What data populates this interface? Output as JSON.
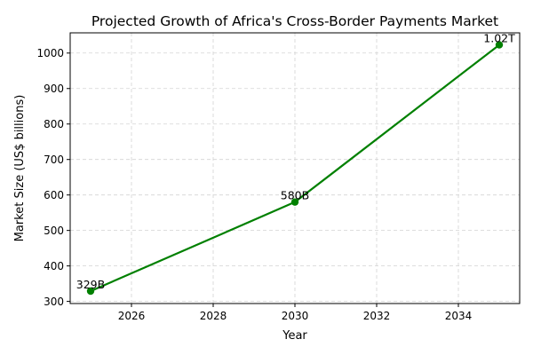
{
  "chart_data": {
    "type": "line",
    "title": "Projected Growth of Africa's Cross-Border Payments Market",
    "xlabel": "Year",
    "ylabel": "Market Size (US$ billions)",
    "x": [
      2025,
      2030,
      2035
    ],
    "series": [
      {
        "values": [
          329,
          580,
          1023
        ],
        "color": "#008000",
        "marker": "circle",
        "labels": [
          "329B",
          "580B",
          "1.02T"
        ]
      }
    ],
    "xlim": [
      2024.5,
      2035.5
    ],
    "ylim": [
      294,
      1057
    ],
    "xticks": [
      2026,
      2028,
      2030,
      2032,
      2034
    ],
    "yticks": [
      300,
      400,
      500,
      600,
      700,
      800,
      900,
      1000
    ],
    "grid": true,
    "grid_style": "dashed"
  }
}
